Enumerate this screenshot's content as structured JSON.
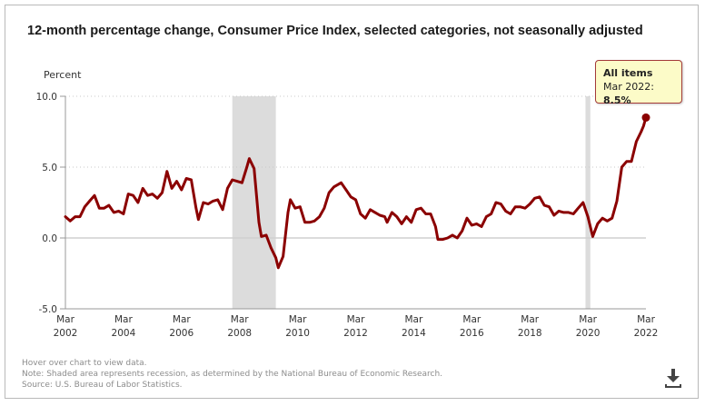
{
  "chart_data": {
    "type": "line",
    "title": "12-month percentage change, Consumer Price Index, selected categories, not seasonally adjusted",
    "xlabel": "",
    "ylabel": "Percent",
    "ylim": [
      -5.0,
      10.0
    ],
    "yticks": [
      "10.0",
      "5.0",
      "0.0",
      "-5.0"
    ],
    "ytick_values": [
      10,
      5,
      0,
      -5
    ],
    "xticks": [
      {
        "month": "Mar",
        "year": "2002"
      },
      {
        "month": "Mar",
        "year": "2004"
      },
      {
        "month": "Mar",
        "year": "2006"
      },
      {
        "month": "Mar",
        "year": "2008"
      },
      {
        "month": "Mar",
        "year": "2010"
      },
      {
        "month": "Mar",
        "year": "2012"
      },
      {
        "month": "Mar",
        "year": "2014"
      },
      {
        "month": "Mar",
        "year": "2016"
      },
      {
        "month": "Mar",
        "year": "2018"
      },
      {
        "month": "Mar",
        "year": "2020"
      },
      {
        "month": "Mar",
        "year": "2022"
      }
    ],
    "xrange": [
      "2002-03",
      "2022-03"
    ],
    "grid": true,
    "recessions": [
      {
        "start": "2007-12",
        "end": "2009-06"
      },
      {
        "start": "2020-02",
        "end": "2020-04"
      }
    ],
    "series": [
      {
        "name": "All items",
        "color": "#8b0000",
        "points": [
          [
            "2002-03",
            1.5
          ],
          [
            "2002-05",
            1.2
          ],
          [
            "2002-07",
            1.5
          ],
          [
            "2002-09",
            1.5
          ],
          [
            "2002-11",
            2.2
          ],
          [
            "2003-01",
            2.6
          ],
          [
            "2003-03",
            3.0
          ],
          [
            "2003-05",
            2.1
          ],
          [
            "2003-07",
            2.1
          ],
          [
            "2003-09",
            2.3
          ],
          [
            "2003-11",
            1.8
          ],
          [
            "2004-01",
            1.9
          ],
          [
            "2004-03",
            1.7
          ],
          [
            "2004-05",
            3.1
          ],
          [
            "2004-07",
            3.0
          ],
          [
            "2004-09",
            2.5
          ],
          [
            "2004-11",
            3.5
          ],
          [
            "2005-01",
            3.0
          ],
          [
            "2005-03",
            3.1
          ],
          [
            "2005-05",
            2.8
          ],
          [
            "2005-07",
            3.2
          ],
          [
            "2005-09",
            4.7
          ],
          [
            "2005-11",
            3.5
          ],
          [
            "2006-01",
            4.0
          ],
          [
            "2006-03",
            3.4
          ],
          [
            "2006-05",
            4.2
          ],
          [
            "2006-07",
            4.1
          ],
          [
            "2006-09",
            2.1
          ],
          [
            "2006-10",
            1.3
          ],
          [
            "2006-12",
            2.5
          ],
          [
            "2007-02",
            2.4
          ],
          [
            "2007-04",
            2.6
          ],
          [
            "2007-06",
            2.7
          ],
          [
            "2007-08",
            2.0
          ],
          [
            "2007-10",
            3.5
          ],
          [
            "2007-12",
            4.1
          ],
          [
            "2008-02",
            4.0
          ],
          [
            "2008-04",
            3.9
          ],
          [
            "2008-06",
            5.0
          ],
          [
            "2008-07",
            5.6
          ],
          [
            "2008-09",
            4.9
          ],
          [
            "2008-11",
            1.1
          ],
          [
            "2008-12",
            0.1
          ],
          [
            "2009-02",
            0.2
          ],
          [
            "2009-04",
            -0.7
          ],
          [
            "2009-06",
            -1.4
          ],
          [
            "2009-07",
            -2.1
          ],
          [
            "2009-09",
            -1.3
          ],
          [
            "2009-11",
            1.8
          ],
          [
            "2009-12",
            2.7
          ],
          [
            "2010-02",
            2.1
          ],
          [
            "2010-04",
            2.2
          ],
          [
            "2010-06",
            1.1
          ],
          [
            "2010-08",
            1.1
          ],
          [
            "2010-10",
            1.2
          ],
          [
            "2010-12",
            1.5
          ],
          [
            "2011-02",
            2.1
          ],
          [
            "2011-04",
            3.2
          ],
          [
            "2011-06",
            3.6
          ],
          [
            "2011-08",
            3.8
          ],
          [
            "2011-09",
            3.9
          ],
          [
            "2011-11",
            3.4
          ],
          [
            "2012-01",
            2.9
          ],
          [
            "2012-03",
            2.7
          ],
          [
            "2012-05",
            1.7
          ],
          [
            "2012-07",
            1.4
          ],
          [
            "2012-09",
            2.0
          ],
          [
            "2012-11",
            1.8
          ],
          [
            "2013-01",
            1.6
          ],
          [
            "2013-03",
            1.5
          ],
          [
            "2013-04",
            1.1
          ],
          [
            "2013-06",
            1.8
          ],
          [
            "2013-08",
            1.5
          ],
          [
            "2013-10",
            1.0
          ],
          [
            "2013-12",
            1.5
          ],
          [
            "2014-02",
            1.1
          ],
          [
            "2014-04",
            2.0
          ],
          [
            "2014-06",
            2.1
          ],
          [
            "2014-08",
            1.7
          ],
          [
            "2014-10",
            1.7
          ],
          [
            "2014-12",
            0.8
          ],
          [
            "2015-01",
            -0.1
          ],
          [
            "2015-03",
            -0.1
          ],
          [
            "2015-05",
            0.0
          ],
          [
            "2015-07",
            0.2
          ],
          [
            "2015-09",
            0.0
          ],
          [
            "2015-11",
            0.5
          ],
          [
            "2016-01",
            1.4
          ],
          [
            "2016-03",
            0.9
          ],
          [
            "2016-05",
            1.0
          ],
          [
            "2016-07",
            0.8
          ],
          [
            "2016-09",
            1.5
          ],
          [
            "2016-11",
            1.7
          ],
          [
            "2017-01",
            2.5
          ],
          [
            "2017-03",
            2.4
          ],
          [
            "2017-05",
            1.9
          ],
          [
            "2017-07",
            1.7
          ],
          [
            "2017-09",
            2.2
          ],
          [
            "2017-11",
            2.2
          ],
          [
            "2018-01",
            2.1
          ],
          [
            "2018-03",
            2.4
          ],
          [
            "2018-05",
            2.8
          ],
          [
            "2018-07",
            2.9
          ],
          [
            "2018-09",
            2.3
          ],
          [
            "2018-11",
            2.2
          ],
          [
            "2019-01",
            1.6
          ],
          [
            "2019-03",
            1.9
          ],
          [
            "2019-05",
            1.8
          ],
          [
            "2019-07",
            1.8
          ],
          [
            "2019-09",
            1.7
          ],
          [
            "2019-11",
            2.1
          ],
          [
            "2020-01",
            2.5
          ],
          [
            "2020-03",
            1.5
          ],
          [
            "2020-05",
            0.1
          ],
          [
            "2020-07",
            1.0
          ],
          [
            "2020-09",
            1.4
          ],
          [
            "2020-11",
            1.2
          ],
          [
            "2021-01",
            1.4
          ],
          [
            "2021-03",
            2.6
          ],
          [
            "2021-05",
            5.0
          ],
          [
            "2021-07",
            5.4
          ],
          [
            "2021-09",
            5.4
          ],
          [
            "2021-11",
            6.8
          ],
          [
            "2022-01",
            7.5
          ],
          [
            "2022-02",
            7.9
          ],
          [
            "2022-03",
            8.5
          ]
        ]
      }
    ],
    "highlight": {
      "series": "All items",
      "date": "2022-03",
      "value": 8.5
    }
  },
  "tooltip": {
    "series": "All items",
    "label": "Mar 2022: ",
    "value": "8.5%"
  },
  "notes": {
    "hover": "Hover over chart to view data.",
    "note": "Note: Shaded area represents recession, as determined by the National Bureau of Economic Research.",
    "source": "Source: U.S. Bureau of Labor Statistics."
  },
  "icons": {
    "download": "download-icon"
  },
  "colors": {
    "line": "#8b0000",
    "recession": "#dcdcdc",
    "tooltip_bg": "#fcfbc8",
    "tooltip_border": "#a33a3a"
  }
}
